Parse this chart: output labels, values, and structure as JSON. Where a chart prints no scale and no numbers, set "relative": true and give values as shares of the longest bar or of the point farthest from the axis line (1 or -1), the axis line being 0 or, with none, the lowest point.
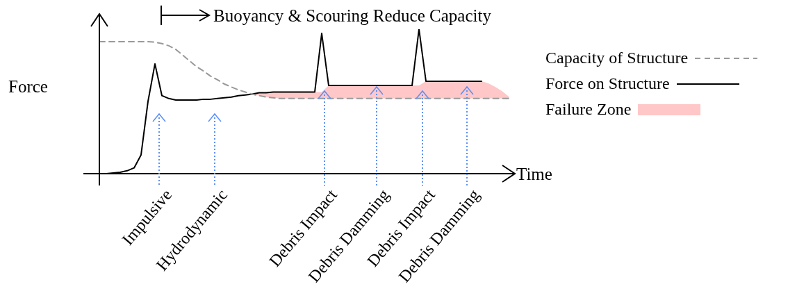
{
  "chart_data": {
    "type": "line",
    "relative": true,
    "title": "Buoyancy & Scouring Reduce Capacity",
    "xlabel": "Time",
    "ylabel": "Force",
    "legend": "right",
    "marker": "none",
    "categories": [
      null,
      null,
      null,
      null,
      null,
      null,
      null,
      null,
      null,
      null,
      null,
      null,
      null,
      null,
      null,
      null,
      null,
      null,
      null,
      null,
      null,
      null,
      null,
      null,
      null,
      null,
      null,
      null,
      null,
      null,
      null,
      null,
      null,
      null,
      null,
      null,
      null,
      null,
      null,
      null,
      null,
      null,
      null,
      null,
      null,
      null,
      null,
      null,
      null,
      null,
      null,
      null,
      null,
      null,
      null,
      null,
      null,
      null,
      null,
      null
    ],
    "series": [
      {
        "name": "Capacity of Structure",
        "color": "#999999",
        "line_style": "dashed",
        "values": [
          0.913,
          0.913,
          0.913,
          0.913,
          0.913,
          0.913,
          0.913,
          0.913,
          0.91,
          0.9,
          0.885,
          0.86,
          0.82,
          0.78,
          0.74,
          0.71,
          0.675,
          0.65,
          0.62,
          0.6,
          0.58,
          0.565,
          0.55,
          0.54,
          0.53,
          0.525,
          0.52,
          0.52,
          0.52,
          0.52,
          0.52,
          0.52,
          0.52,
          0.52,
          0.52,
          0.52,
          0.52,
          0.52,
          0.52,
          0.52,
          0.52,
          0.52,
          0.52,
          0.52,
          0.52,
          0.52,
          0.52,
          0.52,
          0.52,
          0.52,
          0.52,
          0.52,
          0.52,
          0.52,
          0.52,
          0.52,
          0.52,
          0.52,
          0.52,
          0.52
        ]
      },
      {
        "name": "Force on Structure",
        "color": "#000000",
        "line_style": "solid",
        "values": [
          0,
          0,
          0.005,
          0.01,
          0.02,
          0.04,
          0.13,
          0.5,
          0.76,
          0.54,
          0.52,
          0.51,
          0.51,
          0.51,
          0.51,
          0.515,
          0.515,
          0.52,
          0.525,
          0.53,
          0.54,
          0.545,
          0.55,
          0.56,
          0.56,
          0.565,
          0.565,
          0.565,
          0.565,
          0.565,
          0.565,
          0.565,
          0.971,
          0.61,
          0.61,
          0.61,
          0.61,
          0.61,
          0.61,
          0.61,
          0.61,
          0.61,
          0.61,
          0.61,
          0.61,
          0.61,
          1,
          0.64,
          0.64,
          0.64,
          0.64,
          0.64,
          0.64,
          0.64,
          0.64,
          0.64,
          null,
          null,
          null,
          null
        ]
      },
      {
        "name": "Failure Zone",
        "type": "area",
        "color": "#ffc7c7",
        "values": [
          null,
          null,
          null,
          null,
          null,
          null,
          null,
          null,
          null,
          null,
          null,
          null,
          null,
          null,
          null,
          null,
          null,
          null,
          null,
          null,
          null,
          null,
          0.55,
          0.56,
          0.56,
          0.565,
          0.565,
          0.565,
          0.565,
          0.565,
          0.565,
          0.565,
          0.565,
          0.61,
          0.61,
          0.61,
          0.61,
          0.61,
          0.61,
          0.61,
          0.61,
          0.61,
          0.61,
          0.61,
          0.61,
          0.61,
          0.61,
          0.64,
          0.64,
          0.64,
          0.64,
          0.64,
          0.64,
          0.64,
          0.64,
          0.64,
          0.625,
          0.6,
          0.57,
          0.53
        ]
      }
    ],
    "annotations": [
      "Impulsive",
      "Hydrodynamic",
      "Debris Impact",
      "Debris Damming",
      "Debris Impact",
      "Debris Damming"
    ]
  }
}
